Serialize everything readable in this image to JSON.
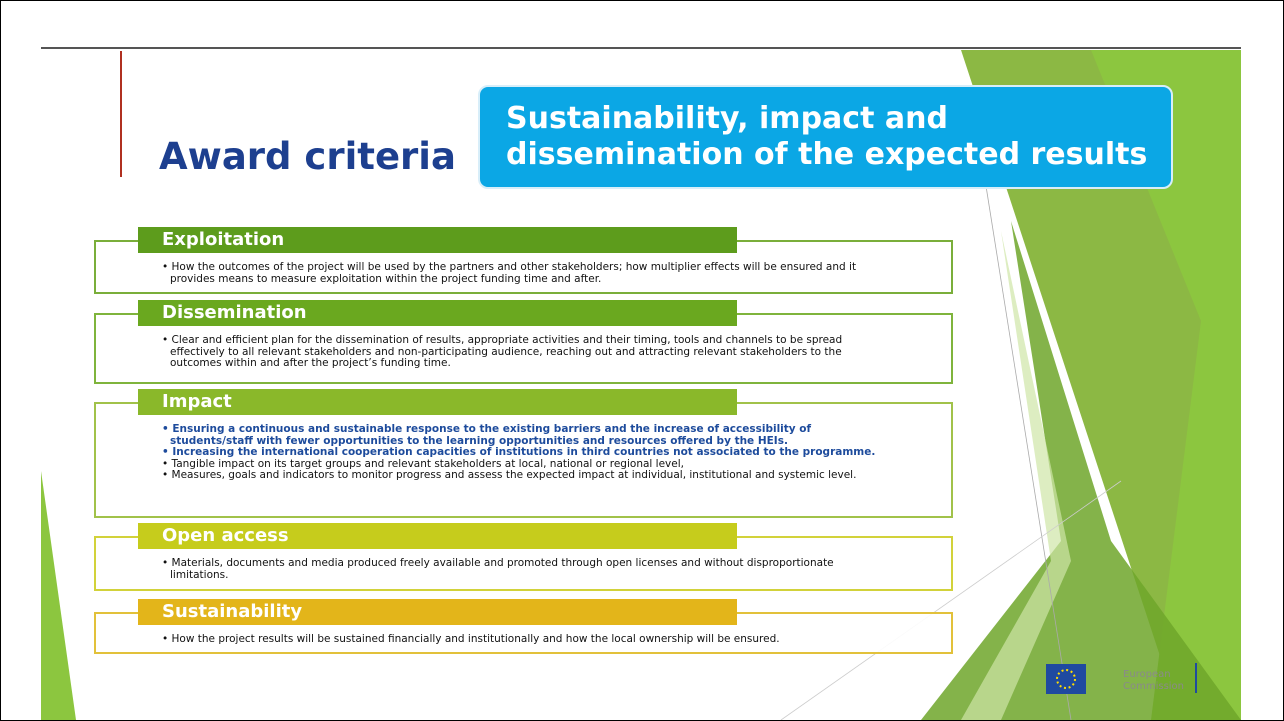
{
  "title": "Award criteria",
  "banner": "Sustainability, impact and dissemination of the expected results",
  "sections": [
    {
      "heading": "Exploitation",
      "bullets": [
        {
          "text": "How the outcomes of the project will be used by the partners and other stakeholders; how multiplier effects will be ensured and it provides means to measure exploitation within the project funding time and after.",
          "emphasis": false
        }
      ]
    },
    {
      "heading": "Dissemination",
      "bullets": [
        {
          "text": "Clear and efficient plan for the dissemination of results, appropriate activities and their timing, tools and channels to be spread effectively to all relevant stakeholders and non-participating audience, reaching out and attracting relevant stakeholders to the outcomes within and after the project’s funding time.",
          "emphasis": false
        }
      ]
    },
    {
      "heading": "Impact",
      "bullets": [
        {
          "text": "Ensuring a continuous and sustainable response to the existing barriers and the increase of accessibility of students/staff with fewer opportunities to the learning opportunities and resources offered by the HEIs.",
          "emphasis": true
        },
        {
          "text": "Increasing the international cooperation capacities of institutions in  third countries not associated to the programme.",
          "emphasis": true
        },
        {
          "text": "Tangible impact on its target groups and relevant stakeholders at local, national or regional level,",
          "emphasis": false
        },
        {
          "text": "Measures, goals and indicators to monitor progress and assess the expected impact at individual, institutional and systemic level.",
          "emphasis": false
        }
      ]
    },
    {
      "heading": "Open access",
      "bullets": [
        {
          "text": "Materials, documents and media produced freely available and promoted through open licenses and without disproportionate limitations.",
          "emphasis": false
        }
      ]
    },
    {
      "heading": "Sustainability",
      "bullets": [
        {
          "text": "How the project results will be sustained financially and institutionally and how the local ownership will be ensured.",
          "emphasis": false
        }
      ]
    }
  ],
  "logo": {
    "line1": "European",
    "line2": "Commission"
  }
}
